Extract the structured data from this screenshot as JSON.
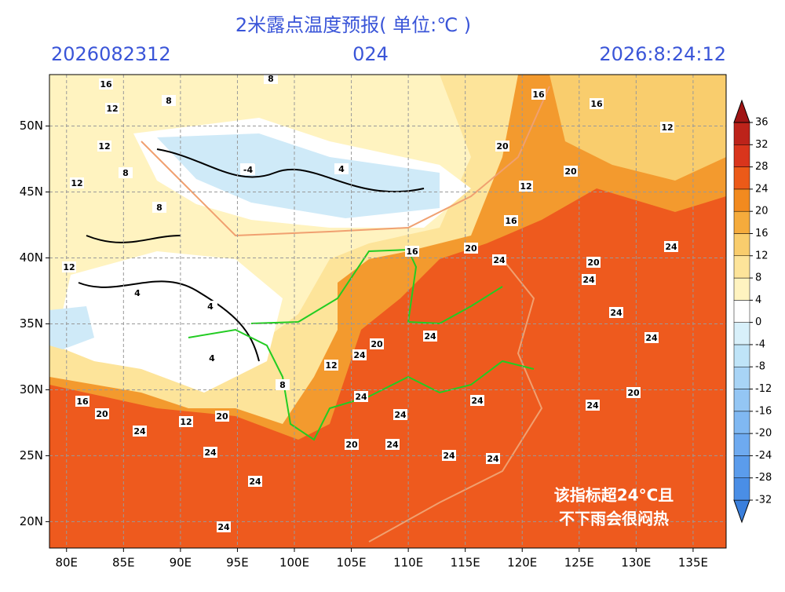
{
  "header": {
    "title": "2米露点温度预报( 单位:℃ )",
    "init_time": "2026082312",
    "lead_hours": "024",
    "valid_time": "2026:8:24:12"
  },
  "map": {
    "xlim": [
      78.5,
      137.9
    ],
    "ylim": [
      18.0,
      53.9
    ],
    "xticks": [
      {
        "value": 80,
        "label": "80E"
      },
      {
        "value": 85,
        "label": "85E"
      },
      {
        "value": 90,
        "label": "90E"
      },
      {
        "value": 95,
        "label": "95E"
      },
      {
        "value": 100,
        "label": "100E"
      },
      {
        "value": 105,
        "label": "105E"
      },
      {
        "value": 110,
        "label": "110E"
      },
      {
        "value": 115,
        "label": "115E"
      },
      {
        "value": 120,
        "label": "120E"
      },
      {
        "value": 125,
        "label": "125E"
      },
      {
        "value": 130,
        "label": "130E"
      },
      {
        "value": 135,
        "label": "135E"
      }
    ],
    "yticks": [
      {
        "value": 20,
        "label": "20N"
      },
      {
        "value": 25,
        "label": "25N"
      },
      {
        "value": 30,
        "label": "30N"
      },
      {
        "value": 35,
        "label": "35N"
      },
      {
        "value": 40,
        "label": "40N"
      },
      {
        "value": 45,
        "label": "45N"
      },
      {
        "value": 50,
        "label": "50N"
      }
    ],
    "grid": true,
    "contour_labels": [
      16,
      12,
      12,
      8,
      8,
      4,
      -4,
      4,
      8,
      8,
      12,
      16,
      12,
      16,
      20,
      12,
      24,
      20,
      24,
      24,
      24,
      20,
      12,
      16,
      20,
      24,
      16,
      24,
      20,
      24,
      24,
      24,
      24,
      24,
      20,
      24,
      24,
      20,
      24,
      24,
      24,
      24,
      12,
      8,
      4,
      4,
      16,
      20,
      20,
      24,
      12,
      4
    ]
  },
  "colorbar": {
    "ticks": [
      -32,
      -28,
      -24,
      -20,
      -16,
      -12,
      -8,
      -4,
      0,
      4,
      8,
      12,
      16,
      20,
      24,
      28,
      32,
      36
    ],
    "colors": [
      "#3a7fdc",
      "#4a8ee6",
      "#5b9cec",
      "#6eaaf0",
      "#80b8f2",
      "#94c6f4",
      "#a8d4f6",
      "#bfe4f8",
      "#d8f0fa",
      "#ffffff",
      "#fff3c0",
      "#fde49a",
      "#f9cd6d",
      "#f5ab3c",
      "#f28a1f",
      "#ec5a18",
      "#d9351c",
      "#bd231a",
      "#a01515"
    ]
  },
  "annotation": [
    "该指标超24°C且",
    "不下雨会很闷热"
  ]
}
